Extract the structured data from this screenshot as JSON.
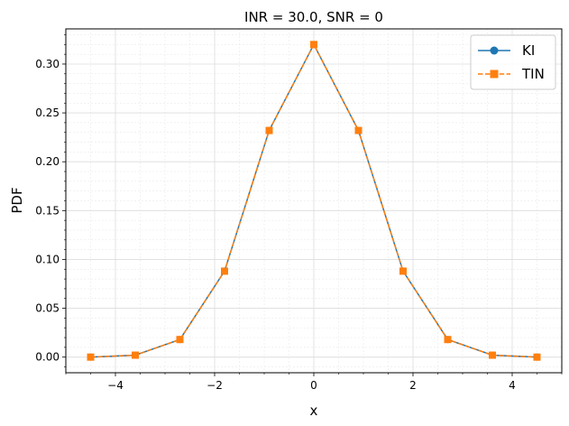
{
  "chart_data": {
    "type": "line",
    "title": "INR = 30.0, SNR = 0",
    "xlabel": "x",
    "ylabel": "PDF",
    "xlim": [
      -5.0,
      5.0
    ],
    "ylim": [
      -0.016,
      0.336
    ],
    "xticks": [
      -4,
      -2,
      0,
      2,
      4
    ],
    "xtick_labels": [
      "−4",
      "−2",
      "0",
      "2",
      "4"
    ],
    "yticks": [
      0.0,
      0.05,
      0.1,
      0.15,
      0.2,
      0.25,
      0.3
    ],
    "ytick_labels": [
      "0.00",
      "0.05",
      "0.10",
      "0.15",
      "0.20",
      "0.25",
      "0.30"
    ],
    "grid": "on (major and minor)",
    "legend": "upper-right",
    "x": [
      -4.5,
      -3.6,
      -2.7,
      -1.8,
      -0.9,
      0.0,
      0.9,
      1.8,
      2.7,
      3.6,
      4.5
    ],
    "series": [
      {
        "name": "KI",
        "color": "#1f77b4",
        "marker": "circle",
        "linestyle": "solid",
        "values": [
          0.0,
          0.002,
          0.018,
          0.088,
          0.232,
          0.32,
          0.232,
          0.088,
          0.018,
          0.002,
          0.0
        ]
      },
      {
        "name": "TIN",
        "color": "#ff7f0e",
        "marker": "square",
        "linestyle": "dashed",
        "values": [
          0.0,
          0.002,
          0.018,
          0.088,
          0.232,
          0.32,
          0.232,
          0.088,
          0.018,
          0.002,
          0.0
        ]
      }
    ]
  }
}
